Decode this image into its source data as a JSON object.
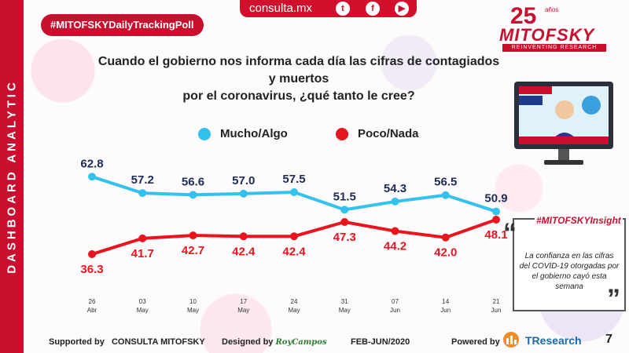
{
  "sidebar": {
    "label": "DASHBOARD ANALYTIC"
  },
  "header": {
    "poll_badge": "#MITOFSKYDailyTrackingPoll",
    "site": "consulta.mx",
    "social": [
      {
        "icon": "twitter-icon",
        "glyph": "t"
      },
      {
        "icon": "facebook-icon",
        "glyph": "f"
      },
      {
        "icon": "youtube-icon",
        "glyph": "▶"
      }
    ],
    "logo": {
      "years": "25",
      "anios": "años",
      "name": "MITOFSKY",
      "tagline": "REINVENTING RESEARCH"
    }
  },
  "question": {
    "line1": "Cuando el gobierno nos informa cada día las cifras de contagiados y muertos",
    "line2": "por el coronavirus, ¿qué tanto le cree?"
  },
  "chart_data": {
    "type": "line",
    "x": [
      {
        "day": "26",
        "month": "Abr"
      },
      {
        "day": "03",
        "month": "May"
      },
      {
        "day": "10",
        "month": "May"
      },
      {
        "day": "17",
        "month": "May"
      },
      {
        "day": "24",
        "month": "May"
      },
      {
        "day": "31",
        "month": "May"
      },
      {
        "day": "07",
        "month": "Jun"
      },
      {
        "day": "14",
        "month": "Jun"
      },
      {
        "day": "21",
        "month": "Jun"
      }
    ],
    "series": [
      {
        "name": "Mucho/Algo",
        "color": "#33c1ee",
        "label_color": "#1c2b5a",
        "values": [
          62.8,
          57.2,
          56.6,
          57.0,
          57.5,
          51.5,
          54.3,
          56.5,
          50.9
        ]
      },
      {
        "name": "Poco/Nada",
        "color": "#e8141e",
        "label_color": "#e8141e",
        "values": [
          36.3,
          41.7,
          42.7,
          42.4,
          42.4,
          47.3,
          44.2,
          42.0,
          48.1
        ]
      }
    ],
    "legend_position": "top"
  },
  "insight": {
    "title": "#MITOFSKYInsight",
    "text": "La confianza en las cifras del COVID-19 otorgadas por el gobierno cayó esta semana"
  },
  "footer": {
    "supported_prefix": "Supported by",
    "supported_name": "CONSULTA MITOFSKY",
    "designed_prefix": "Designed by",
    "designed_name": "RoyCampos",
    "period": "FEB-JUN/2020",
    "powered_prefix": "Powered by",
    "powered_name": "TResearch"
  },
  "page_number": "7"
}
